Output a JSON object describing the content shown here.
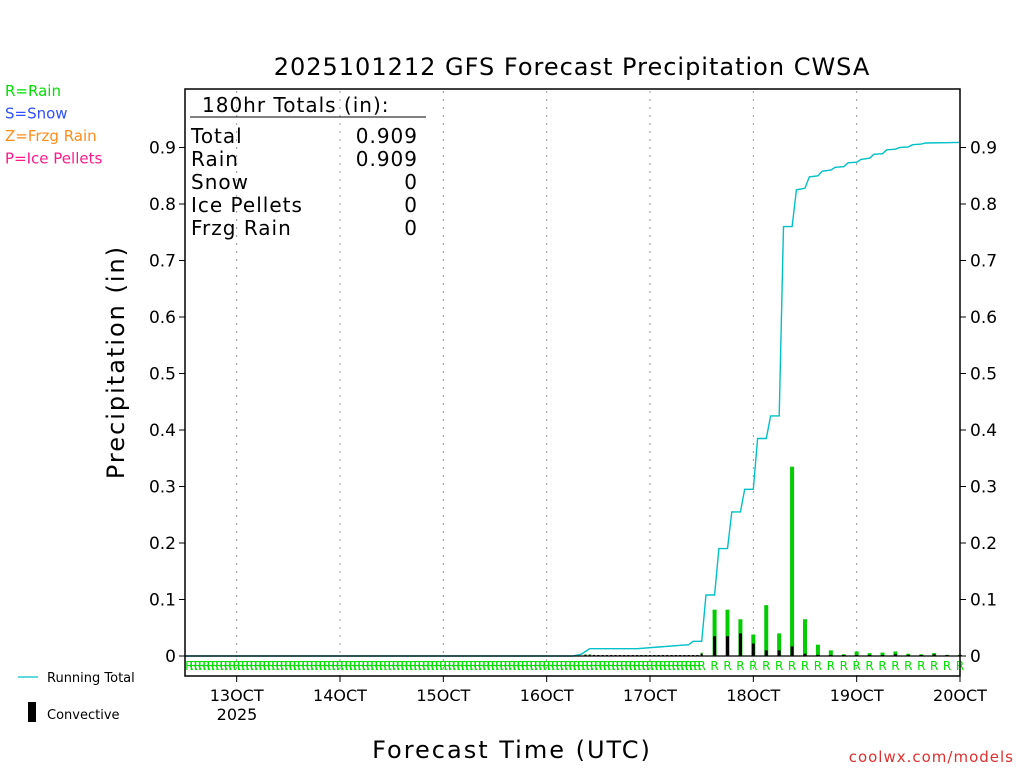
{
  "chart_data": {
    "type": "bar",
    "title": "2025101212 GFS Forecast Precipitation CWSA",
    "xlabel": "Forecast Time (UTC)",
    "ylabel": "Precipitation (in)",
    "ylim": [
      0,
      1.0
    ],
    "y_ticks": [
      0,
      0.1,
      0.2,
      0.3,
      0.4,
      0.5,
      0.6,
      0.7,
      0.8,
      0.9
    ],
    "y_tick_labels": [
      "0",
      "0.1",
      "0.2",
      "0.3",
      "0.4",
      "0.5",
      "0.6",
      "0.7",
      "0.8",
      "0.9"
    ],
    "x_range_hours": [
      0,
      180
    ],
    "x_ticks": [
      {
        "hour": 12,
        "label": "13OCT"
      },
      {
        "hour": 36,
        "label": "14OCT"
      },
      {
        "hour": 60,
        "label": "15OCT"
      },
      {
        "hour": 84,
        "label": "16OCT"
      },
      {
        "hour": 108,
        "label": "17OCT"
      },
      {
        "hour": 132,
        "label": "18OCT"
      },
      {
        "hour": 156,
        "label": "19OCT"
      },
      {
        "hour": 180,
        "label": "20OCT"
      }
    ],
    "x_sublabel": "2025",
    "grid": "dotted vertical at day boundaries",
    "type_legend": [
      {
        "code": "R",
        "label": "R=Rain",
        "color": "#00e000"
      },
      {
        "code": "S",
        "label": "S=Snow",
        "color": "#3050ff"
      },
      {
        "code": "Z",
        "label": "Z=Frzg Rain",
        "color": "#ff8c1a"
      },
      {
        "code": "P",
        "label": "P=Ice Pellets",
        "color": "#ff1a8c"
      }
    ],
    "series_legend": {
      "running_total": "Running Total",
      "convective": "Convective"
    },
    "colors": {
      "precip": "#00cc00",
      "running_total": "#00c0c8",
      "convective": "#000000",
      "grid": "#999999"
    },
    "totals_box": {
      "header": "180hr Totals (in):",
      "rows": [
        {
          "label": "Total",
          "value": "0.909"
        },
        {
          "label": "Rain",
          "value": "0.909"
        },
        {
          "label": "Snow",
          "value": "0"
        },
        {
          "label": "Ice Pellets",
          "value": "0"
        },
        {
          "label": "Frzg Rain",
          "value": "0"
        }
      ]
    },
    "hourly_period_end": 120,
    "type_marker": "R",
    "precip_bars": [
      {
        "hour": 93,
        "total": 0.003,
        "convective": 0.002
      },
      {
        "hour": 94,
        "total": 0.003,
        "convective": 0.002
      },
      {
        "hour": 95,
        "total": 0.002,
        "convective": 0.001
      },
      {
        "hour": 96,
        "total": 0.001,
        "convective": 0.001
      },
      {
        "hour": 97,
        "total": 0.001,
        "convective": 0.001
      },
      {
        "hour": 98,
        "total": 0.001,
        "convective": 0.001
      },
      {
        "hour": 99,
        "total": 0.001,
        "convective": 0.001
      },
      {
        "hour": 100,
        "total": 0.001,
        "convective": 0.001
      },
      {
        "hour": 101,
        "total": 0.001,
        "convective": 0.001
      },
      {
        "hour": 102,
        "total": 0.001,
        "convective": 0.001
      },
      {
        "hour": 103,
        "total": 0.001,
        "convective": 0.001
      },
      {
        "hour": 104,
        "total": 0.001,
        "convective": 0.001
      },
      {
        "hour": 105,
        "total": 0.001,
        "convective": 0.001
      },
      {
        "hour": 106,
        "total": 0.001,
        "convective": 0.001
      },
      {
        "hour": 107,
        "total": 0.001,
        "convective": 0.001
      },
      {
        "hour": 108,
        "total": 0.001,
        "convective": 0.001
      },
      {
        "hour": 109,
        "total": 0.001,
        "convective": 0.001
      },
      {
        "hour": 110,
        "total": 0.001,
        "convective": 0.001
      },
      {
        "hour": 111,
        "total": 0.001,
        "convective": 0.001
      },
      {
        "hour": 112,
        "total": 0.001,
        "convective": 0.001
      },
      {
        "hour": 113,
        "total": 0.001,
        "convective": 0.001
      },
      {
        "hour": 114,
        "total": 0.001,
        "convective": 0.001
      },
      {
        "hour": 115,
        "total": 0.001,
        "convective": 0.001
      },
      {
        "hour": 116,
        "total": 0.001,
        "convective": 0.001
      },
      {
        "hour": 117,
        "total": 0.001,
        "convective": 0.001
      },
      {
        "hour": 118,
        "total": 0.001,
        "convective": 0.001
      },
      {
        "hour": 119,
        "total": 0.001,
        "convective": 0.001
      },
      {
        "hour": 120,
        "total": 0.006,
        "convective": 0.004
      },
      {
        "hour": 123,
        "total": 0.082,
        "convective": 0.035
      },
      {
        "hour": 126,
        "total": 0.082,
        "convective": 0.035
      },
      {
        "hour": 129,
        "total": 0.065,
        "convective": 0.04
      },
      {
        "hour": 132,
        "total": 0.038,
        "convective": 0.022
      },
      {
        "hour": 135,
        "total": 0.09,
        "convective": 0.01
      },
      {
        "hour": 138,
        "total": 0.04,
        "convective": 0.01
      },
      {
        "hour": 141,
        "total": 0.335,
        "convective": 0.017
      },
      {
        "hour": 144,
        "total": 0.065,
        "convective": 0.004
      },
      {
        "hour": 147,
        "total": 0.02,
        "convective": 0.002
      },
      {
        "hour": 150,
        "total": 0.01,
        "convective": 0.001
      },
      {
        "hour": 153,
        "total": 0.003,
        "convective": 0.001
      },
      {
        "hour": 156,
        "total": 0.008,
        "convective": 0.001
      },
      {
        "hour": 159,
        "total": 0.005,
        "convective": 0.001
      },
      {
        "hour": 162,
        "total": 0.006,
        "convective": 0.001
      },
      {
        "hour": 165,
        "total": 0.008,
        "convective": 0.003
      },
      {
        "hour": 168,
        "total": 0.004,
        "convective": 0.002
      },
      {
        "hour": 171,
        "total": 0.003,
        "convective": 0.001
      },
      {
        "hour": 174,
        "total": 0.005,
        "convective": 0.003
      },
      {
        "hour": 177,
        "total": 0.002,
        "convective": 0.001
      },
      {
        "hour": 180,
        "total": 0.002,
        "convective": 0.001
      }
    ],
    "running_total": [
      {
        "hour": 0,
        "value": 0
      },
      {
        "hour": 90,
        "value": 0
      },
      {
        "hour": 92,
        "value": 0.003
      },
      {
        "hour": 93,
        "value": 0.008
      },
      {
        "hour": 94,
        "value": 0.013
      },
      {
        "hour": 105,
        "value": 0.013
      },
      {
        "hour": 110,
        "value": 0.016
      },
      {
        "hour": 117,
        "value": 0.02
      },
      {
        "hour": 118,
        "value": 0.026
      },
      {
        "hour": 120,
        "value": 0.026
      },
      {
        "hour": 121,
        "value": 0.108
      },
      {
        "hour": 123,
        "value": 0.108
      },
      {
        "hour": 124,
        "value": 0.19
      },
      {
        "hour": 126,
        "value": 0.19
      },
      {
        "hour": 127,
        "value": 0.255
      },
      {
        "hour": 129,
        "value": 0.255
      },
      {
        "hour": 130,
        "value": 0.295
      },
      {
        "hour": 132,
        "value": 0.295
      },
      {
        "hour": 133,
        "value": 0.385
      },
      {
        "hour": 135,
        "value": 0.385
      },
      {
        "hour": 136,
        "value": 0.425
      },
      {
        "hour": 138,
        "value": 0.425
      },
      {
        "hour": 139,
        "value": 0.76
      },
      {
        "hour": 141,
        "value": 0.76
      },
      {
        "hour": 142,
        "value": 0.825
      },
      {
        "hour": 144,
        "value": 0.828
      },
      {
        "hour": 145,
        "value": 0.848
      },
      {
        "hour": 147,
        "value": 0.85
      },
      {
        "hour": 148,
        "value": 0.858
      },
      {
        "hour": 150,
        "value": 0.86
      },
      {
        "hour": 151,
        "value": 0.865
      },
      {
        "hour": 153,
        "value": 0.866
      },
      {
        "hour": 154,
        "value": 0.873
      },
      {
        "hour": 156,
        "value": 0.874
      },
      {
        "hour": 157,
        "value": 0.879
      },
      {
        "hour": 159,
        "value": 0.881
      },
      {
        "hour": 160,
        "value": 0.888
      },
      {
        "hour": 162,
        "value": 0.889
      },
      {
        "hour": 163,
        "value": 0.896
      },
      {
        "hour": 165,
        "value": 0.897
      },
      {
        "hour": 166,
        "value": 0.9
      },
      {
        "hour": 168,
        "value": 0.901
      },
      {
        "hour": 169,
        "value": 0.905
      },
      {
        "hour": 171,
        "value": 0.906
      },
      {
        "hour": 172,
        "value": 0.908
      },
      {
        "hour": 180,
        "value": 0.909
      }
    ]
  },
  "credit": "coolwx.com/models"
}
